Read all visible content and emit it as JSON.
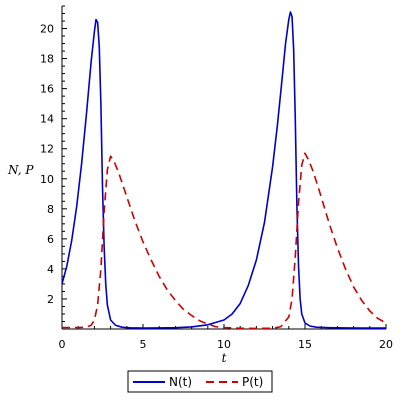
{
  "chart_data": {
    "type": "line",
    "title": "",
    "xlabel": "t",
    "ylabel": "N, P",
    "xlim": [
      0,
      20
    ],
    "ylim": [
      0,
      21.5
    ],
    "x_ticks": [
      0,
      5,
      10,
      15,
      20
    ],
    "y_ticks": [
      2,
      4,
      6,
      8,
      10,
      12,
      14,
      16,
      18,
      20
    ],
    "grid": false,
    "legend_position": "bottom",
    "series": [
      {
        "name": "N(t)",
        "color": "#0000cc",
        "dash": "solid",
        "x": [
          0,
          0.3,
          0.6,
          0.9,
          1.2,
          1.5,
          1.8,
          2.0,
          2.1,
          2.2,
          2.3,
          2.4,
          2.5,
          2.6,
          2.7,
          2.8,
          3.0,
          3.3,
          3.7,
          4.2,
          5.0,
          6.0,
          7.0,
          8.0,
          9.0,
          10.0,
          10.5,
          11.0,
          11.5,
          12.0,
          12.5,
          13.0,
          13.3,
          13.6,
          13.8,
          14.0,
          14.1,
          14.2,
          14.3,
          14.4,
          14.5,
          14.6,
          14.7,
          14.8,
          15.0,
          15.3,
          15.7,
          16.5,
          17.5,
          18.5,
          19.5,
          20.0
        ],
        "y": [
          3.0,
          4.2,
          5.9,
          8.1,
          10.9,
          14.2,
          17.8,
          19.8,
          20.6,
          20.4,
          18.8,
          15.0,
          9.5,
          5.5,
          3.0,
          1.6,
          0.6,
          0.25,
          0.12,
          0.08,
          0.06,
          0.07,
          0.09,
          0.14,
          0.28,
          0.6,
          1.0,
          1.7,
          2.9,
          4.6,
          7.1,
          10.8,
          13.6,
          16.8,
          19.0,
          20.6,
          21.1,
          20.8,
          18.6,
          14.0,
          8.2,
          4.2,
          2.0,
          1.0,
          0.4,
          0.2,
          0.12,
          0.09,
          0.07,
          0.06,
          0.06,
          0.06
        ]
      },
      {
        "name": "P(t)",
        "color": "#cc0000",
        "dash": "dashed",
        "x": [
          0,
          0.5,
          1.0,
          1.5,
          1.8,
          2.0,
          2.2,
          2.4,
          2.6,
          2.8,
          3.0,
          3.2,
          3.5,
          4.0,
          4.5,
          5.0,
          5.5,
          6.0,
          6.5,
          7.0,
          7.5,
          8.0,
          8.5,
          9.0,
          9.5,
          10.0,
          11.0,
          12.0,
          13.0,
          13.5,
          14.0,
          14.2,
          14.4,
          14.6,
          14.8,
          15.0,
          15.2,
          15.5,
          16.0,
          16.5,
          17.0,
          17.5,
          18.0,
          18.5,
          19.0,
          19.5,
          20.0
        ],
        "y": [
          0.1,
          0.1,
          0.1,
          0.12,
          0.25,
          0.6,
          1.6,
          4.0,
          7.8,
          10.6,
          11.5,
          11.2,
          10.4,
          8.8,
          7.2,
          5.8,
          4.6,
          3.5,
          2.6,
          1.9,
          1.3,
          0.9,
          0.55,
          0.32,
          0.15,
          0.1,
          0.05,
          0.04,
          0.05,
          0.15,
          0.8,
          2.0,
          4.8,
          8.4,
          10.9,
          11.7,
          11.3,
          10.5,
          8.8,
          7.0,
          5.4,
          4.0,
          2.8,
          1.9,
          1.2,
          0.7,
          0.4
        ]
      }
    ]
  }
}
